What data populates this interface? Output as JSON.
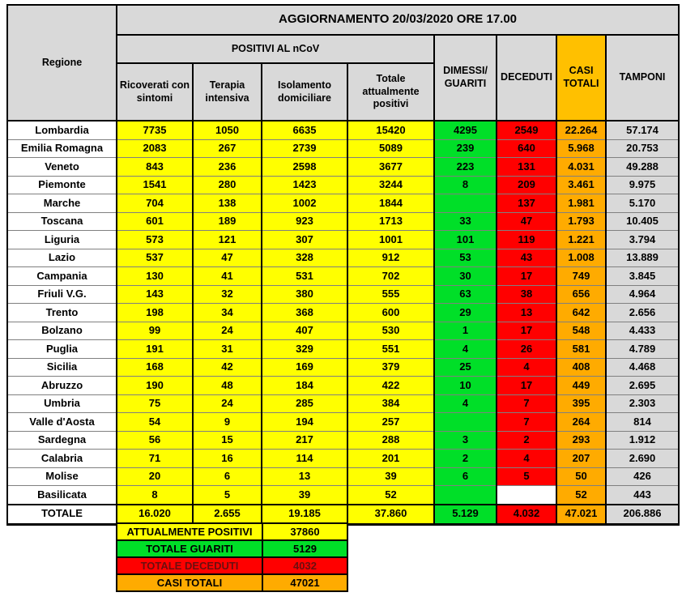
{
  "title": "AGGIORNAMENTO 20/03/2020 ORE 17.00",
  "colors": {
    "yellow": "#FFFF00",
    "green": "#00DF28",
    "red": "#FF0000",
    "orange_header": "#FFC000",
    "orange_cell": "#FFAB00",
    "gray_header": "#D9D9D9",
    "gray_cell": "#D9D9D9",
    "dark_red_text": "#6B0F0F"
  },
  "table": {
    "col_regione": "Regione",
    "group_positivi": "POSITIVI AL nCoV",
    "sub_headers": [
      "Ricoverati con sintomi",
      "Terapia intensiva",
      "Isolamento domiciliare",
      "Totale attualmente positivi"
    ],
    "col_dimessi": "DIMESSI/\nGUARITI",
    "col_deceduti": "DECEDUTI",
    "col_casi": "CASI\nTOTALI",
    "col_tamponi": "TAMPONI",
    "rows": [
      {
        "name": "Lombardia",
        "values": [
          "7735",
          "1050",
          "6635",
          "15420",
          "4295",
          "2549",
          "22.264",
          "57.174"
        ]
      },
      {
        "name": "Emilia Romagna",
        "values": [
          "2083",
          "267",
          "2739",
          "5089",
          "239",
          "640",
          "5.968",
          "20.753"
        ]
      },
      {
        "name": "Veneto",
        "values": [
          "843",
          "236",
          "2598",
          "3677",
          "223",
          "131",
          "4.031",
          "49.288"
        ]
      },
      {
        "name": "Piemonte",
        "values": [
          "1541",
          "280",
          "1423",
          "3244",
          "8",
          "209",
          "3.461",
          "9.975"
        ]
      },
      {
        "name": "Marche",
        "values": [
          "704",
          "138",
          "1002",
          "1844",
          "",
          "137",
          "1.981",
          "5.170"
        ]
      },
      {
        "name": "Toscana",
        "values": [
          "601",
          "189",
          "923",
          "1713",
          "33",
          "47",
          "1.793",
          "10.405"
        ]
      },
      {
        "name": "Liguria",
        "values": [
          "573",
          "121",
          "307",
          "1001",
          "101",
          "119",
          "1.221",
          "3.794"
        ]
      },
      {
        "name": "Lazio",
        "values": [
          "537",
          "47",
          "328",
          "912",
          "53",
          "43",
          "1.008",
          "13.889"
        ]
      },
      {
        "name": "Campania",
        "values": [
          "130",
          "41",
          "531",
          "702",
          "30",
          "17",
          "749",
          "3.845"
        ]
      },
      {
        "name": "Friuli V.G.",
        "values": [
          "143",
          "32",
          "380",
          "555",
          "63",
          "38",
          "656",
          "4.964"
        ]
      },
      {
        "name": "Trento",
        "values": [
          "198",
          "34",
          "368",
          "600",
          "29",
          "13",
          "642",
          "2.656"
        ]
      },
      {
        "name": "Bolzano",
        "values": [
          "99",
          "24",
          "407",
          "530",
          "1",
          "17",
          "548",
          "4.433"
        ]
      },
      {
        "name": "Puglia",
        "values": [
          "191",
          "31",
          "329",
          "551",
          "4",
          "26",
          "581",
          "4.789"
        ]
      },
      {
        "name": "Sicilia",
        "values": [
          "168",
          "42",
          "169",
          "379",
          "25",
          "4",
          "408",
          "4.468"
        ]
      },
      {
        "name": "Abruzzo",
        "values": [
          "190",
          "48",
          "184",
          "422",
          "10",
          "17",
          "449",
          "2.695"
        ]
      },
      {
        "name": "Umbria",
        "values": [
          "75",
          "24",
          "285",
          "384",
          "4",
          "7",
          "395",
          "2.303"
        ]
      },
      {
        "name": "Valle d'Aosta",
        "values": [
          "54",
          "9",
          "194",
          "257",
          "",
          "7",
          "264",
          "814"
        ]
      },
      {
        "name": "Sardegna",
        "values": [
          "56",
          "15",
          "217",
          "288",
          "3",
          "2",
          "293",
          "1.912"
        ]
      },
      {
        "name": "Calabria",
        "values": [
          "71",
          "16",
          "114",
          "201",
          "2",
          "4",
          "207",
          "2.690"
        ]
      },
      {
        "name": "Molise",
        "values": [
          "20",
          "6",
          "13",
          "39",
          "6",
          "5",
          "50",
          "426"
        ]
      },
      {
        "name": "Basilicata",
        "values": [
          "8",
          "5",
          "39",
          "52",
          "",
          "",
          "52",
          "443"
        ]
      }
    ],
    "total_row": {
      "name": "TOTALE",
      "values": [
        "16.020",
        "2.655",
        "19.185",
        "37.860",
        "5.129",
        "4.032",
        "47.021",
        "206.886"
      ]
    }
  },
  "summary": {
    "rows": [
      {
        "label": "ATTUALMENTE POSITIVI",
        "value": "37860",
        "color": "yellow"
      },
      {
        "label": "TOTALE GUARITI",
        "value": "5129",
        "color": "green"
      },
      {
        "label": "TOTALE DECEDUTI",
        "value": "4032",
        "color": "red"
      },
      {
        "label": "CASI TOTALI",
        "value": "47021",
        "color": "orange"
      }
    ]
  },
  "chart_data": {
    "type": "table",
    "title": "AGGIORNAMENTO 20/03/2020 ORE 17.00",
    "columns": [
      "Regione",
      "Ricoverati con sintomi",
      "Terapia intensiva",
      "Isolamento domiciliare",
      "Totale attualmente positivi",
      "Dimessi/Guariti",
      "Deceduti",
      "Casi totali",
      "Tamponi"
    ],
    "rows": [
      [
        "Lombardia",
        7735,
        1050,
        6635,
        15420,
        4295,
        2549,
        22264,
        57174
      ],
      [
        "Emilia Romagna",
        2083,
        267,
        2739,
        5089,
        239,
        640,
        5968,
        20753
      ],
      [
        "Veneto",
        843,
        236,
        2598,
        3677,
        223,
        131,
        4031,
        49288
      ],
      [
        "Piemonte",
        1541,
        280,
        1423,
        3244,
        8,
        209,
        3461,
        9975
      ],
      [
        "Marche",
        704,
        138,
        1002,
        1844,
        null,
        137,
        1981,
        5170
      ],
      [
        "Toscana",
        601,
        189,
        923,
        1713,
        33,
        47,
        1793,
        10405
      ],
      [
        "Liguria",
        573,
        121,
        307,
        1001,
        101,
        119,
        1221,
        3794
      ],
      [
        "Lazio",
        537,
        47,
        328,
        912,
        53,
        43,
        1008,
        13889
      ],
      [
        "Campania",
        130,
        41,
        531,
        702,
        30,
        17,
        749,
        3845
      ],
      [
        "Friuli V.G.",
        143,
        32,
        380,
        555,
        63,
        38,
        656,
        4964
      ],
      [
        "Trento",
        198,
        34,
        368,
        600,
        29,
        13,
        642,
        2656
      ],
      [
        "Bolzano",
        99,
        24,
        407,
        530,
        1,
        17,
        548,
        4433
      ],
      [
        "Puglia",
        191,
        31,
        329,
        551,
        4,
        26,
        581,
        4789
      ],
      [
        "Sicilia",
        168,
        42,
        169,
        379,
        25,
        4,
        408,
        4468
      ],
      [
        "Abruzzo",
        190,
        48,
        184,
        422,
        10,
        17,
        449,
        2695
      ],
      [
        "Umbria",
        75,
        24,
        285,
        384,
        4,
        7,
        395,
        2303
      ],
      [
        "Valle d'Aosta",
        54,
        9,
        194,
        257,
        null,
        7,
        264,
        814
      ],
      [
        "Sardegna",
        56,
        15,
        217,
        288,
        3,
        2,
        293,
        1912
      ],
      [
        "Calabria",
        71,
        16,
        114,
        201,
        2,
        4,
        207,
        2690
      ],
      [
        "Molise",
        20,
        6,
        13,
        39,
        6,
        5,
        50,
        426
      ],
      [
        "Basilicata",
        8,
        5,
        39,
        52,
        null,
        null,
        52,
        443
      ]
    ],
    "totals": [
      "TOTALE",
      16020,
      2655,
      19185,
      37860,
      5129,
      4032,
      47021,
      206886
    ],
    "summary": {
      "attualmente_positivi": 37860,
      "totale_guariti": 5129,
      "totale_deceduti": 4032,
      "casi_totali": 47021
    }
  }
}
